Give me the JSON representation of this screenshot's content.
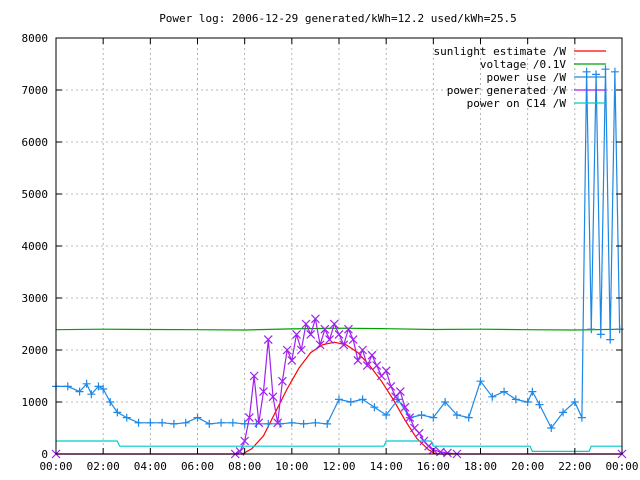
{
  "chart_data": {
    "type": "line",
    "title": "Power log: 2006-12-29 generated/kWh=12.2 used/kWh=25.5",
    "xlabel": "",
    "ylabel": "",
    "xlim": [
      0,
      24
    ],
    "ylim": [
      0,
      8000
    ],
    "grid": true,
    "legend_position": "top-right",
    "x_tick_labels": [
      "00:00",
      "02:00",
      "04:00",
      "06:00",
      "08:00",
      "10:00",
      "12:00",
      "14:00",
      "16:00",
      "18:00",
      "20:00",
      "22:00",
      "00:00"
    ],
    "y_tick_labels": [
      "0",
      "1000",
      "2000",
      "3000",
      "4000",
      "5000",
      "6000",
      "7000",
      "8000"
    ],
    "series": [
      {
        "name": "sunlight estimate /W",
        "color": "#ff0000",
        "marker": "none",
        "x": [
          0,
          7.9,
          8.3,
          8.8,
          9.3,
          9.8,
          10.3,
          10.8,
          11.3,
          11.8,
          12.3,
          12.8,
          13.3,
          13.8,
          14.3,
          14.8,
          15.3,
          15.8,
          16.1,
          24
        ],
        "y": [
          0,
          0,
          100,
          350,
          800,
          1250,
          1650,
          1950,
          2100,
          2150,
          2100,
          1950,
          1700,
          1400,
          1050,
          650,
          300,
          80,
          0,
          0
        ]
      },
      {
        "name": "voltage /0.1V",
        "color": "#00a000",
        "marker": "none",
        "x": [
          0,
          2,
          4,
          6,
          8,
          10,
          12,
          14,
          16,
          18,
          20,
          22,
          24
        ],
        "y": [
          2390,
          2400,
          2395,
          2390,
          2385,
          2405,
          2420,
          2410,
          2395,
          2400,
          2390,
          2385,
          2400
        ]
      },
      {
        "name": "power use /W",
        "color": "#1e88e5",
        "marker": "plus",
        "x": [
          0,
          0.5,
          1.0,
          1.3,
          1.5,
          1.8,
          2.0,
          2.3,
          2.6,
          3.0,
          3.5,
          4.0,
          4.5,
          5.0,
          5.5,
          6.0,
          6.5,
          7.0,
          7.5,
          8.0,
          8.5,
          9.0,
          9.5,
          10.0,
          10.5,
          11.0,
          11.5,
          12.0,
          12.5,
          13.0,
          13.5,
          14.0,
          14.5,
          15.0,
          15.5,
          16.0,
          16.5,
          17.0,
          17.5,
          18.0,
          18.5,
          19.0,
          19.5,
          20.0,
          20.2,
          20.5,
          21.0,
          21.5,
          22.0,
          22.3,
          22.5,
          22.7,
          22.9,
          23.1,
          23.3,
          23.5,
          23.7,
          23.9
        ],
        "y": [
          1300,
          1300,
          1200,
          1350,
          1150,
          1300,
          1250,
          1000,
          800,
          700,
          600,
          600,
          600,
          580,
          600,
          700,
          580,
          600,
          600,
          580,
          580,
          580,
          580,
          600,
          580,
          600,
          580,
          1050,
          1000,
          1050,
          900,
          750,
          1050,
          700,
          750,
          700,
          1000,
          750,
          700,
          1400,
          1100,
          1200,
          1050,
          1000,
          1200,
          950,
          500,
          800,
          1000,
          700,
          7350,
          2400,
          7300,
          2300,
          7400,
          2200,
          7350,
          2400
        ]
      },
      {
        "name": "power generated /W",
        "color": "#a020f0",
        "marker": "x",
        "x": [
          0,
          7.6,
          7.8,
          8.0,
          8.2,
          8.4,
          8.6,
          8.8,
          9.0,
          9.2,
          9.4,
          9.6,
          9.8,
          10.0,
          10.2,
          10.4,
          10.6,
          10.8,
          11.0,
          11.2,
          11.4,
          11.6,
          11.8,
          12.0,
          12.2,
          12.4,
          12.6,
          12.8,
          13.0,
          13.2,
          13.4,
          13.6,
          13.8,
          14.0,
          14.2,
          14.4,
          14.6,
          14.8,
          15.0,
          15.2,
          15.4,
          15.6,
          15.8,
          16.0,
          16.3,
          16.6,
          17.0,
          24
        ],
        "y": [
          0,
          0,
          50,
          250,
          700,
          1500,
          600,
          1200,
          2200,
          1100,
          600,
          1400,
          2000,
          1800,
          2300,
          2000,
          2500,
          2300,
          2600,
          2100,
          2400,
          2200,
          2500,
          2300,
          2100,
          2400,
          2200,
          1800,
          2000,
          1700,
          1900,
          1700,
          1500,
          1600,
          1300,
          1100,
          1200,
          900,
          700,
          500,
          400,
          250,
          150,
          80,
          40,
          20,
          0,
          0
        ]
      },
      {
        "name": "power on C14 /W",
        "color": "#00cccc",
        "marker": "none",
        "x": [
          0,
          2.6,
          2.7,
          13.9,
          14.0,
          15.9,
          16.0,
          20.1,
          20.2,
          22.6,
          22.7,
          24
        ],
        "y": [
          250,
          250,
          150,
          150,
          250,
          250,
          150,
          150,
          50,
          50,
          150,
          150
        ]
      }
    ]
  }
}
